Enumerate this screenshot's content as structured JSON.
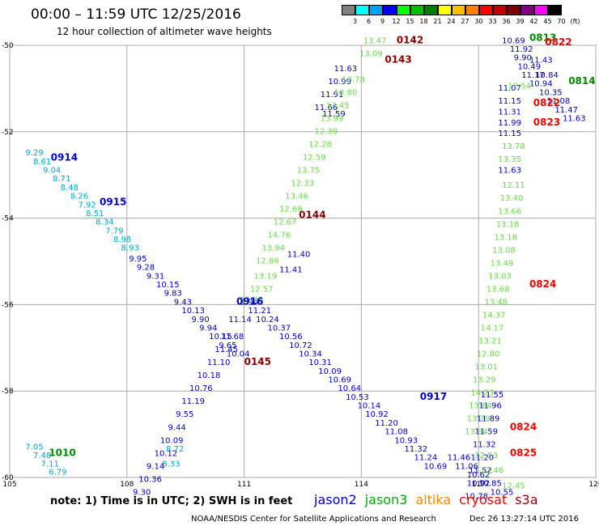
{
  "header": {
    "title": "00:00 – 11:59 UTC 12/25/2016",
    "subtitle": "12 hour collection of altimeter wave heights"
  },
  "colorbar": {
    "labels": [
      "3",
      "6",
      "9",
      "12",
      "15",
      "18",
      "21",
      "24",
      "27",
      "30",
      "33",
      "36",
      "39",
      "42",
      "45",
      "70",
      "(ft)"
    ],
    "colors": [
      "#808080",
      "#00ffff",
      "#00a0ff",
      "#0000ff",
      "#00ff00",
      "#00c000",
      "#008000",
      "#ffff00",
      "#ffc000",
      "#ff8000",
      "#ff0000",
      "#c00000",
      "#800000",
      "#800080",
      "#ff00ff",
      "#000000"
    ]
  },
  "footer": {
    "note": "note:  1) Time is in UTC;  2) SWH is in feet",
    "credit": "NOAA/NESDIS Center for Satellite Applications and Research",
    "timestamp": "Dec 26 13:27:14 UTC 2016"
  },
  "legend": [
    {
      "name": "jason2",
      "color": "#0000cc"
    },
    {
      "name": "jason3",
      "color": "#00aa00"
    },
    {
      "name": "altika",
      "color": "#ff8800"
    },
    {
      "name": "cryosat",
      "color": "#ee0000"
    },
    {
      "name": "s3a",
      "color": "#990000"
    }
  ],
  "chart_data": {
    "type": "scatter",
    "xlim": [
      105,
      120
    ],
    "ylim": [
      -60,
      -50
    ],
    "x_ticks": [
      105,
      108,
      111,
      114,
      117,
      120
    ],
    "y_ticks": [
      -50,
      -52,
      -54,
      -56,
      -58,
      -60
    ],
    "x_tick_labels": [
      "105",
      "108",
      "111",
      "114",
      "117",
      "120"
    ],
    "y_tick_labels": [
      "-50",
      "-52",
      "-54",
      "-56",
      "-58",
      "-60"
    ],
    "grid": true,
    "colors": {
      "blue": "#0000cc",
      "cyan": "#00aacc",
      "lightgreen": "#66dd44",
      "green": "#008800",
      "darkred": "#880000",
      "red": "#ee0000"
    },
    "time_labels": [
      {
        "text": "0914",
        "x": 106.05,
        "y": -52.67,
        "color": "blue"
      },
      {
        "text": "0915",
        "x": 107.3,
        "y": -53.7,
        "color": "blue"
      },
      {
        "text": "0916",
        "x": 110.8,
        "y": -56.0,
        "color": "blue"
      },
      {
        "text": "0917",
        "x": 115.5,
        "y": -58.2,
        "color": "blue"
      },
      {
        "text": "1010",
        "x": 106.0,
        "y": -59.5,
        "color": "green"
      },
      {
        "text": "0142",
        "x": 114.9,
        "y": -49.95,
        "color": "darkred"
      },
      {
        "text": "0143",
        "x": 114.6,
        "y": -50.4,
        "color": "darkred"
      },
      {
        "text": "0144",
        "x": 112.4,
        "y": -54.0,
        "color": "darkred"
      },
      {
        "text": "0145",
        "x": 111.0,
        "y": -57.4,
        "color": "darkred"
      },
      {
        "text": "0813",
        "x": 118.3,
        "y": -49.9,
        "color": "green"
      },
      {
        "text": "0814",
        "x": 119.3,
        "y": -50.9,
        "color": "green"
      },
      {
        "text": "0822",
        "x": 118.7,
        "y": -50.0,
        "color": "red"
      },
      {
        "text": "0822",
        "x": 118.4,
        "y": -51.4,
        "color": "red"
      },
      {
        "text": "0823",
        "x": 118.4,
        "y": -51.85,
        "color": "red"
      },
      {
        "text": "0824",
        "x": 118.3,
        "y": -55.6,
        "color": "red"
      },
      {
        "text": "0824",
        "x": 117.8,
        "y": -58.9,
        "color": "red"
      },
      {
        "text": "0825",
        "x": 117.8,
        "y": -59.5,
        "color": "red"
      }
    ],
    "series": [
      {
        "name": "jason2",
        "color": "cyan",
        "points": [
          {
            "x": 105.4,
            "y": -52.55,
            "v": "9.29"
          },
          {
            "x": 105.6,
            "y": -52.75,
            "v": "8.61"
          },
          {
            "x": 105.85,
            "y": -52.95,
            "v": "9.04"
          },
          {
            "x": 106.1,
            "y": -53.15,
            "v": "8.71"
          },
          {
            "x": 106.3,
            "y": -53.35,
            "v": "8.48"
          },
          {
            "x": 106.55,
            "y": -53.55,
            "v": "8.26"
          },
          {
            "x": 106.75,
            "y": -53.75,
            "v": "7.92"
          },
          {
            "x": 106.95,
            "y": -53.95,
            "v": "8.51"
          },
          {
            "x": 107.2,
            "y": -54.15,
            "v": "8.34"
          },
          {
            "x": 107.45,
            "y": -54.35,
            "v": "7.79"
          },
          {
            "x": 107.65,
            "y": -54.55,
            "v": "8.98"
          },
          {
            "x": 107.85,
            "y": -54.75,
            "v": "8.93"
          },
          {
            "x": 105.4,
            "y": -59.35,
            "v": "7.05"
          },
          {
            "x": 105.6,
            "y": -59.55,
            "v": "7.48"
          },
          {
            "x": 105.8,
            "y": -59.75,
            "v": "7.11"
          },
          {
            "x": 106.0,
            "y": -59.93,
            "v": "6.79"
          },
          {
            "x": 108.9,
            "y": -59.75,
            "v": "8.33"
          },
          {
            "x": 109.0,
            "y": -59.4,
            "v": "8.72"
          }
        ]
      },
      {
        "name": "jason2",
        "color": "blue",
        "points": [
          {
            "x": 108.05,
            "y": -55.0,
            "v": "9.95"
          },
          {
            "x": 108.25,
            "y": -55.2,
            "v": "9.28"
          },
          {
            "x": 108.5,
            "y": -55.4,
            "v": "9.31"
          },
          {
            "x": 108.75,
            "y": -55.6,
            "v": "10.15"
          },
          {
            "x": 108.95,
            "y": -55.8,
            "v": "9.83"
          },
          {
            "x": 109.2,
            "y": -56.0,
            "v": "9.43"
          },
          {
            "x": 109.4,
            "y": -56.2,
            "v": "10.13"
          },
          {
            "x": 109.65,
            "y": -56.4,
            "v": "9.90"
          },
          {
            "x": 109.85,
            "y": -56.6,
            "v": "9.94"
          },
          {
            "x": 110.1,
            "y": -56.8,
            "v": "10.15"
          },
          {
            "x": 110.35,
            "y": -57.0,
            "v": "9.65"
          },
          {
            "x": 110.55,
            "y": -57.2,
            "v": "10.04"
          },
          {
            "x": 110.9,
            "y": -56.0,
            "v": "9.94"
          },
          {
            "x": 111.1,
            "y": -56.2,
            "v": "11.21"
          },
          {
            "x": 111.3,
            "y": -56.4,
            "v": "10.24"
          },
          {
            "x": 111.6,
            "y": -56.6,
            "v": "10.37"
          },
          {
            "x": 111.9,
            "y": -56.8,
            "v": "10.56"
          },
          {
            "x": 112.15,
            "y": -57.0,
            "v": "10.72"
          },
          {
            "x": 112.4,
            "y": -57.2,
            "v": "10.34"
          },
          {
            "x": 112.65,
            "y": -57.4,
            "v": "10.31"
          },
          {
            "x": 112.9,
            "y": -57.6,
            "v": "10.09"
          },
          {
            "x": 113.15,
            "y": -57.8,
            "v": "10.69"
          },
          {
            "x": 113.4,
            "y": -58.0,
            "v": "10.64"
          },
          {
            "x": 113.6,
            "y": -58.2,
            "v": "10.53"
          },
          {
            "x": 113.9,
            "y": -58.4,
            "v": "10.14"
          },
          {
            "x": 114.1,
            "y": -58.6,
            "v": "10.92"
          },
          {
            "x": 114.35,
            "y": -58.8,
            "v": "11.20"
          },
          {
            "x": 114.6,
            "y": -59.0,
            "v": "11.08"
          },
          {
            "x": 114.85,
            "y": -59.2,
            "v": "10.93"
          },
          {
            "x": 115.1,
            "y": -59.4,
            "v": "11.32"
          },
          {
            "x": 115.35,
            "y": -59.6,
            "v": "11.24"
          },
          {
            "x": 115.6,
            "y": -59.8,
            "v": "10.69"
          },
          {
            "x": 116.2,
            "y": -59.6,
            "v": "11.46"
          },
          {
            "x": 116.4,
            "y": -59.8,
            "v": "11.06"
          },
          {
            "x": 116.7,
            "y": -60.0,
            "v": "10.62"
          },
          {
            "x": 117.0,
            "y": -60.2,
            "v": "10.85"
          },
          {
            "x": 117.3,
            "y": -60.4,
            "v": "10.55"
          },
          {
            "x": 110.6,
            "y": -56.4,
            "v": "11.14"
          },
          {
            "x": 110.4,
            "y": -56.8,
            "v": "11.68"
          },
          {
            "x": 110.25,
            "y": -57.1,
            "v": "11.45"
          },
          {
            "x": 110.05,
            "y": -57.4,
            "v": "11.10"
          },
          {
            "x": 109.8,
            "y": -57.7,
            "v": "10.18"
          },
          {
            "x": 109.6,
            "y": -58.0,
            "v": "10.76"
          },
          {
            "x": 109.4,
            "y": -58.3,
            "v": "11.19"
          },
          {
            "x": 109.25,
            "y": -58.6,
            "v": "9.55"
          },
          {
            "x": 109.05,
            "y": -58.9,
            "v": "9.44"
          },
          {
            "x": 108.85,
            "y": -59.2,
            "v": "10.09"
          },
          {
            "x": 108.7,
            "y": -59.5,
            "v": "10.12"
          },
          {
            "x": 108.5,
            "y": -59.8,
            "v": "9.14"
          },
          {
            "x": 108.3,
            "y": -60.1,
            "v": "10.36"
          },
          {
            "x": 108.15,
            "y": -60.4,
            "v": "9.30"
          },
          {
            "x": 112.1,
            "y": -54.9,
            "v": "11.40"
          },
          {
            "x": 111.9,
            "y": -55.25,
            "v": "11.41"
          },
          {
            "x": 112.8,
            "y": -51.5,
            "v": "11.66"
          },
          {
            "x": 112.95,
            "y": -51.2,
            "v": "11.91"
          },
          {
            "x": 113.15,
            "y": -50.9,
            "v": "10.99"
          },
          {
            "x": 113.3,
            "y": -50.6,
            "v": "11.63"
          },
          {
            "x": 113.0,
            "y": -51.65,
            "v": "11.59"
          },
          {
            "x": 117.05,
            "y": -58.15,
            "v": "11.55"
          },
          {
            "x": 117.0,
            "y": -58.4,
            "v": "11.96"
          },
          {
            "x": 116.95,
            "y": -58.7,
            "v": "11.89"
          },
          {
            "x": 116.9,
            "y": -59.0,
            "v": "11.59"
          },
          {
            "x": 116.85,
            "y": -59.3,
            "v": "11.32"
          },
          {
            "x": 116.8,
            "y": -59.6,
            "v": "11.20"
          },
          {
            "x": 116.75,
            "y": -59.9,
            "v": "11.52"
          },
          {
            "x": 116.7,
            "y": -60.2,
            "v": "10.92"
          },
          {
            "x": 116.65,
            "y": -60.5,
            "v": "10.78"
          },
          {
            "x": 117.5,
            "y": -51.05,
            "v": "11.07"
          },
          {
            "x": 117.5,
            "y": -51.35,
            "v": "11.15"
          },
          {
            "x": 117.5,
            "y": -51.6,
            "v": "11.31"
          },
          {
            "x": 117.5,
            "y": -51.85,
            "v": "11.99"
          },
          {
            "x": 117.5,
            "y": -52.1,
            "v": "11.15"
          },
          {
            "x": 117.5,
            "y": -52.95,
            "v": "11.63"
          },
          {
            "x": 117.6,
            "y": -49.95,
            "v": "10.69"
          },
          {
            "x": 117.8,
            "y": -50.15,
            "v": "11.92"
          },
          {
            "x": 117.9,
            "y": -50.35,
            "v": "9.90"
          },
          {
            "x": 118.0,
            "y": -50.55,
            "v": "10.49"
          },
          {
            "x": 118.1,
            "y": -50.75,
            "v": "11.17"
          },
          {
            "x": 118.3,
            "y": -50.95,
            "v": "10.94"
          },
          {
            "x": 118.55,
            "y": -51.15,
            "v": "10.35"
          },
          {
            "x": 118.75,
            "y": -51.35,
            "v": "11.08"
          },
          {
            "x": 118.95,
            "y": -51.55,
            "v": "11.47"
          },
          {
            "x": 119.15,
            "y": -51.75,
            "v": "11.63"
          },
          {
            "x": 118.3,
            "y": -50.4,
            "v": "11.43"
          },
          {
            "x": 118.45,
            "y": -50.75,
            "v": "10.84"
          }
        ]
      },
      {
        "name": "jason3",
        "color": "lightgreen",
        "points": [
          {
            "x": 114.05,
            "y": -49.95,
            "v": "13.47"
          },
          {
            "x": 113.95,
            "y": -50.25,
            "v": "13.09"
          },
          {
            "x": 113.5,
            "y": -50.85,
            "v": "13.78"
          },
          {
            "x": 113.3,
            "y": -51.15,
            "v": "13.80"
          },
          {
            "x": 113.1,
            "y": -51.45,
            "v": "13.45"
          },
          {
            "x": 112.95,
            "y": -51.75,
            "v": "13.99"
          },
          {
            "x": 112.8,
            "y": -52.05,
            "v": "12.39"
          },
          {
            "x": 112.65,
            "y": -52.35,
            "v": "12.28"
          },
          {
            "x": 112.5,
            "y": -52.65,
            "v": "12.59"
          },
          {
            "x": 112.35,
            "y": -52.95,
            "v": "13.75"
          },
          {
            "x": 112.2,
            "y": -53.25,
            "v": "12.33"
          },
          {
            "x": 112.05,
            "y": -53.55,
            "v": "13.46"
          },
          {
            "x": 111.9,
            "y": -53.85,
            "v": "12.69"
          },
          {
            "x": 111.75,
            "y": -54.15,
            "v": "12.67"
          },
          {
            "x": 111.6,
            "y": -54.45,
            "v": "14.76"
          },
          {
            "x": 111.45,
            "y": -54.75,
            "v": "13.94"
          },
          {
            "x": 111.3,
            "y": -55.05,
            "v": "12.89"
          },
          {
            "x": 111.25,
            "y": -55.4,
            "v": "13.19"
          },
          {
            "x": 111.15,
            "y": -55.7,
            "v": "12.57"
          },
          {
            "x": 110.9,
            "y": -55.95,
            "v": "12.46"
          },
          {
            "x": 117.75,
            "y": -51.0,
            "v": "12.54"
          },
          {
            "x": 117.6,
            "y": -52.4,
            "v": "13.78"
          },
          {
            "x": 117.5,
            "y": -52.7,
            "v": "13.35"
          },
          {
            "x": 117.6,
            "y": -53.3,
            "v": "12.11"
          },
          {
            "x": 117.55,
            "y": -53.6,
            "v": "13.40"
          },
          {
            "x": 117.5,
            "y": -53.9,
            "v": "13.66"
          },
          {
            "x": 117.45,
            "y": -54.2,
            "v": "13.18"
          },
          {
            "x": 117.4,
            "y": -54.5,
            "v": "13.18"
          },
          {
            "x": 117.35,
            "y": -54.8,
            "v": "13.08"
          },
          {
            "x": 117.3,
            "y": -55.1,
            "v": "13.49"
          },
          {
            "x": 117.25,
            "y": -55.4,
            "v": "13.03"
          },
          {
            "x": 117.2,
            "y": -55.7,
            "v": "13.68"
          },
          {
            "x": 117.15,
            "y": -56.0,
            "v": "13.48"
          },
          {
            "x": 117.1,
            "y": -56.3,
            "v": "14.37"
          },
          {
            "x": 117.05,
            "y": -56.6,
            "v": "14.17"
          },
          {
            "x": 117.0,
            "y": -56.9,
            "v": "13.21"
          },
          {
            "x": 116.95,
            "y": -57.2,
            "v": "12.80"
          },
          {
            "x": 116.9,
            "y": -57.5,
            "v": "13.01"
          },
          {
            "x": 116.85,
            "y": -57.8,
            "v": "13.29"
          },
          {
            "x": 116.8,
            "y": -58.1,
            "v": "14.23"
          },
          {
            "x": 116.75,
            "y": -58.4,
            "v": "13.64"
          },
          {
            "x": 116.7,
            "y": -58.7,
            "v": "13.79"
          },
          {
            "x": 116.65,
            "y": -59.0,
            "v": "13.94"
          },
          {
            "x": 116.9,
            "y": -59.55,
            "v": "12.53"
          },
          {
            "x": 117.05,
            "y": -59.9,
            "v": "12.46"
          },
          {
            "x": 117.6,
            "y": -60.25,
            "v": "12.45"
          }
        ]
      }
    ]
  }
}
